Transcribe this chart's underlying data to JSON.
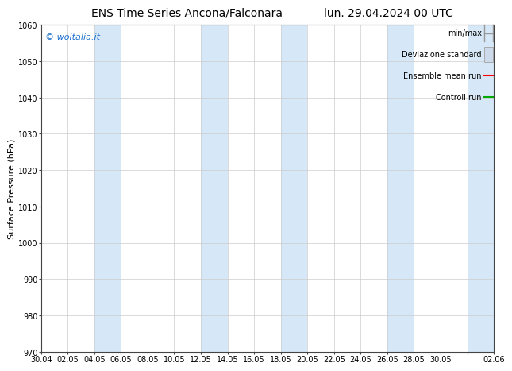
{
  "title_left": "ENS Time Series Ancona/Falconara",
  "title_right": "lun. 29.04.2024 00 UTC",
  "ylabel": "Surface Pressure (hPa)",
  "ylim": [
    970,
    1060
  ],
  "yticks": [
    970,
    980,
    990,
    1000,
    1010,
    1020,
    1030,
    1040,
    1050,
    1060
  ],
  "x_labels": [
    "30.04",
    "02.05",
    "04.05",
    "06.05",
    "08.05",
    "10.05",
    "12.05",
    "14.05",
    "16.05",
    "18.05",
    "20.05",
    "22.05",
    "24.05",
    "26.05",
    "28.05",
    "30.05",
    "",
    "02.06"
  ],
  "x_values": [
    0,
    2,
    4,
    6,
    8,
    10,
    12,
    14,
    16,
    18,
    20,
    22,
    24,
    26,
    28,
    30,
    32,
    34
  ],
  "shaded_columns_start": [
    4,
    12,
    18,
    26,
    32
  ],
  "shaded_color": "#d6e8f7",
  "background_color": "#ffffff",
  "watermark_text": "© woitalia.it",
  "watermark_color": "#1a6fcc",
  "legend_items": [
    "min/max",
    "Deviazione standard",
    "Ensemble mean run",
    "Controll run"
  ],
  "legend_colors_line": [
    "#999999",
    "#bbcfdf",
    "#ff0000",
    "#00aa00"
  ],
  "grid_color": "#cccccc",
  "axis_color": "#444444",
  "title_fontsize": 10,
  "tick_fontsize": 7,
  "ylabel_fontsize": 8,
  "legend_fontsize": 7
}
